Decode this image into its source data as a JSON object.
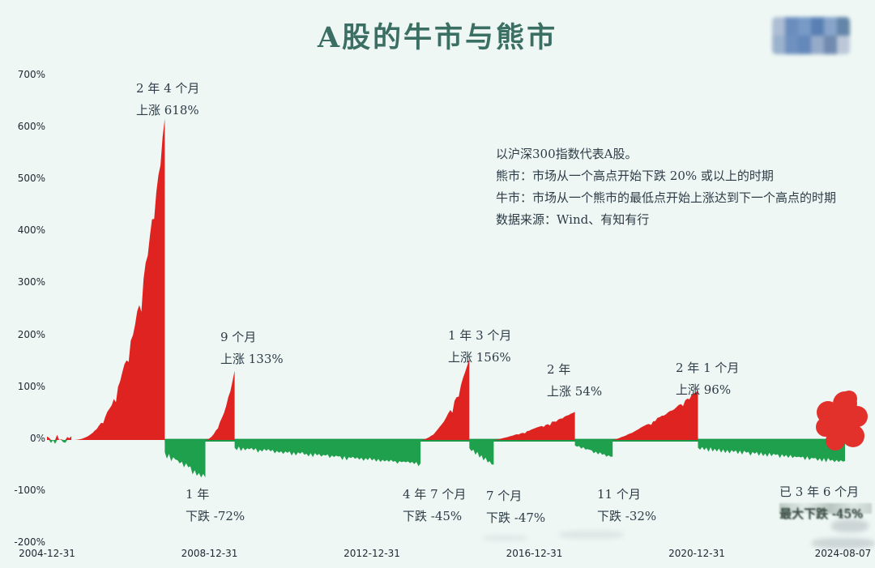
{
  "page": {
    "title": "A股的牛市与熊市"
  },
  "notes": {
    "line1": "以沪深300指数代表A股。",
    "line2": "熊市：市场从一个高点开始下跌 20% 或以上的时期",
    "line3": "牛市：市场从一个熊市的最低点开始上涨达到下一个高点的时期",
    "line4": "数据来源：Wind、有知有行"
  },
  "colors": {
    "background": "#eef7f4",
    "title": "#3b6f63",
    "annotation_text": "#2c3b46",
    "bull_red": "#df2320",
    "bear_green": "#1ea04c",
    "baseline_green": "#17994a",
    "scribble_red": "#e2312a"
  },
  "watermark": {
    "description": "pixelated-censored-logo",
    "blocks": [
      "#a6b7d0",
      "#5d82b8",
      "#6b90c2",
      "#4a74ad",
      "#7d9cc6",
      "#55799f",
      "#93abc9",
      "#6286ba",
      "#557db4",
      "#8ca3c5",
      "#647fa8",
      "#b7c3d6"
    ]
  },
  "chart_data": {
    "type": "area",
    "title": "A股的牛市与熊市",
    "description": "沪深300指数牛熊市周期涨跌幅（%），牛市为红色、熊市为绿色",
    "x_axis": {
      "tick_labels": [
        "2004-12-31",
        "2008-12-31",
        "2012-12-31",
        "2016-12-31",
        "2020-12-31",
        "2024-08-07"
      ],
      "tick_years": [
        0,
        4,
        8,
        12,
        16,
        19.6
      ]
    },
    "y_axis": {
      "unit": "%",
      "tick_labels": [
        "700%",
        "600%",
        "500%",
        "400%",
        "300%",
        "200%",
        "100%",
        "0%",
        "-100%",
        "-200%"
      ],
      "tick_values": [
        700,
        600,
        500,
        400,
        300,
        200,
        100,
        0,
        -100,
        -200
      ],
      "min": -200,
      "max": 700
    },
    "segments": [
      {
        "kind": "flat",
        "start_year": 0,
        "end_year": 0.6,
        "change_pct": 0
      },
      {
        "kind": "bull",
        "start_year": 0.6,
        "end_year": 2.9,
        "change_pct": 618,
        "duration_label": "2 年 4 个月",
        "change_label": "上涨 618%"
      },
      {
        "kind": "bear",
        "start_year": 2.9,
        "end_year": 3.9,
        "change_pct": -72,
        "duration_label": "1 年",
        "change_label": "下跌 -72%"
      },
      {
        "kind": "bull",
        "start_year": 3.9,
        "end_year": 4.62,
        "change_pct": 133,
        "duration_label": "9 个月",
        "change_label": "上涨 133%"
      },
      {
        "kind": "bear",
        "start_year": 4.62,
        "end_year": 9.2,
        "change_pct": -45,
        "duration_label": "4 年 7 个月",
        "change_label": "下跌 -45%"
      },
      {
        "kind": "bull",
        "start_year": 9.2,
        "end_year": 10.4,
        "change_pct": 156,
        "duration_label": "1 年 3 个月",
        "change_label": "上涨 156%"
      },
      {
        "kind": "bear",
        "start_year": 10.4,
        "end_year": 11.0,
        "change_pct": -47,
        "duration_label": "7 个月",
        "change_label": "下跌 -47%"
      },
      {
        "kind": "bull",
        "start_year": 11.0,
        "end_year": 13.0,
        "change_pct": 54,
        "duration_label": "2 年",
        "change_label": "上涨 54%"
      },
      {
        "kind": "bear",
        "start_year": 13.0,
        "end_year": 13.93,
        "change_pct": -32,
        "duration_label": "11 个月",
        "change_label": "下跌 -32%"
      },
      {
        "kind": "bull",
        "start_year": 13.93,
        "end_year": 16.03,
        "change_pct": 96,
        "duration_label": "2 年 1 个月",
        "change_label": "上涨 96%"
      },
      {
        "kind": "bear",
        "start_year": 16.03,
        "end_year": 19.65,
        "change_pct": -45,
        "ongoing": true,
        "duration_label": "已 3 年 6 个月",
        "change_label": "最大下跌 -45%"
      }
    ]
  }
}
